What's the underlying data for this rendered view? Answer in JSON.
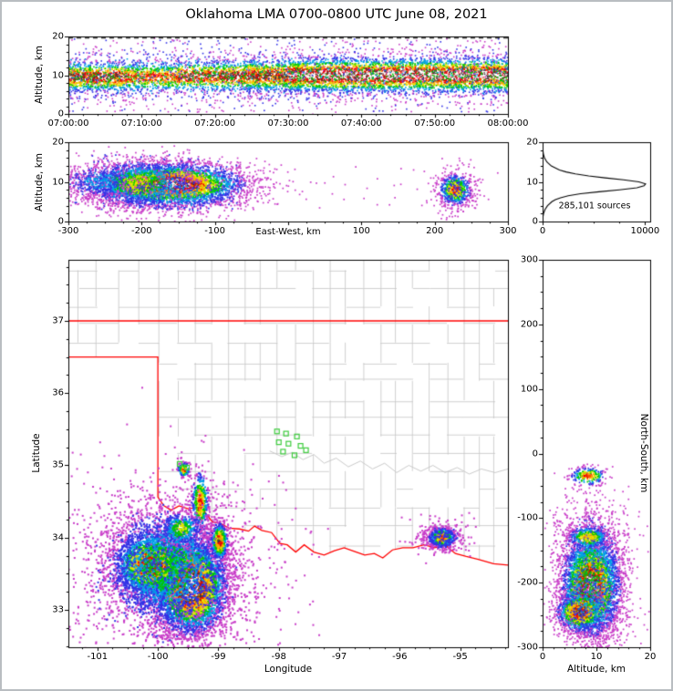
{
  "title": "Oklahoma LMA 0700-0800 UTC June 08, 2021",
  "colors": {
    "density_scale": [
      "#c83cc8",
      "#3232e6",
      "#00a0e6",
      "#00c800",
      "#e6e600",
      "#ffa000",
      "#f00000",
      "#3c3c3c",
      "#ffffff"
    ],
    "state_border": "#ff0000",
    "county_line": "#c4c4c4",
    "river_line": "#c4c4c4",
    "station_marker": "#3ecc3e",
    "histogram_line": "#000000",
    "axis": "#000000",
    "figure_border": "#b9bdc1"
  },
  "chart_data": [
    {
      "id": "time_height",
      "type": "scatter-density",
      "xlabel": "",
      "ylabel": "Altitude, km",
      "xlim": [
        0,
        3600
      ],
      "ylim": [
        0,
        20
      ],
      "x_ticks": [
        {
          "v": 0,
          "label": "07:00:00"
        },
        {
          "v": 600,
          "label": "07:10:00"
        },
        {
          "v": 1200,
          "label": "07:20:00"
        },
        {
          "v": 1800,
          "label": "07:30:00"
        },
        {
          "v": 2400,
          "label": "07:40:00"
        },
        {
          "v": 3000,
          "label": "07:50:00"
        },
        {
          "v": 3600,
          "label": "08:00:00"
        }
      ],
      "y_ticks": [
        {
          "v": 0,
          "label": "0"
        },
        {
          "v": 10,
          "label": "10"
        },
        {
          "v": 20,
          "label": "20"
        }
      ],
      "x_minor_step": 120,
      "y_minor_step": 2,
      "dashed_line_alt": 19.6,
      "bands": [
        {
          "x0": 0,
          "x1": 480,
          "cy": 9.5,
          "sy": 2.0,
          "n": 900,
          "t0": 0,
          "t1": 7
        },
        {
          "x0": 480,
          "x1": 900,
          "cy": 9.5,
          "sy": 2.0,
          "n": 650,
          "t0": 0,
          "t1": 6
        },
        {
          "x0": 900,
          "x1": 1440,
          "cy": 9.8,
          "sy": 2.0,
          "n": 800,
          "t0": 0,
          "t1": 7
        },
        {
          "x0": 1440,
          "x1": 1800,
          "cy": 9.9,
          "sy": 2.1,
          "n": 850,
          "t0": 0,
          "t1": 7
        },
        {
          "x0": 1800,
          "x1": 2100,
          "cy": 10.0,
          "sy": 2.2,
          "n": 950,
          "t0": 0,
          "t1": 8
        },
        {
          "x0": 2100,
          "x1": 3600,
          "cy": 10.0,
          "sy": 2.3,
          "n": 4000,
          "t0": 0,
          "t1": 8
        },
        {
          "x0": 0,
          "x1": 3600,
          "cy": 9.8,
          "sy": 3.8,
          "n": 1300,
          "t0": 0,
          "t1": 3
        }
      ],
      "noise": [
        {
          "x0": 0,
          "x1": 3600,
          "y0": 0.5,
          "y1": 19.4,
          "n": 600,
          "t0": 0,
          "t1": 1
        }
      ]
    },
    {
      "id": "ew_height",
      "type": "scatter-density",
      "xlabel": "East-West, km",
      "ylabel": "Altitude, km",
      "xlim": [
        -300,
        300
      ],
      "ylim": [
        0,
        20
      ],
      "x_ticks": [
        {
          "v": -300,
          "label": "-300"
        },
        {
          "v": -200,
          "label": "-200"
        },
        {
          "v": -100,
          "label": "-100"
        },
        {
          "v": 0,
          "label": ""
        },
        {
          "v": 100,
          "label": "100"
        },
        {
          "v": 200,
          "label": "200"
        },
        {
          "v": 300,
          "label": "300"
        }
      ],
      "y_ticks": [
        {
          "v": 0,
          "label": "0"
        },
        {
          "v": 10,
          "label": "10"
        },
        {
          "v": 20,
          "label": "20"
        }
      ],
      "x_minor_step": 25,
      "y_minor_step": 2,
      "clusters": [
        {
          "cx": -160,
          "cy": 9.3,
          "sx": 50,
          "sy": 2.6,
          "n": 4800,
          "t0": 0,
          "t1": 8
        },
        {
          "cx": -205,
          "cy": 9.6,
          "sx": 38,
          "sy": 3.1,
          "n": 1300,
          "t0": 0,
          "t1": 4
        },
        {
          "cx": -258,
          "cy": 10.0,
          "sx": 26,
          "sy": 2.4,
          "n": 450,
          "t0": 0,
          "t1": 2
        },
        {
          "cx": -150,
          "cy": 6.5,
          "sx": 55,
          "sy": 2.8,
          "n": 500,
          "t0": 0,
          "t1": 2
        },
        {
          "cx": 228,
          "cy": 8.0,
          "sx": 11,
          "sy": 2.0,
          "n": 620,
          "t0": 0,
          "t1": 6
        },
        {
          "cx": 228,
          "cy": 8.0,
          "sx": 18,
          "sy": 3.4,
          "n": 180,
          "t0": 0,
          "t1": 1
        }
      ],
      "noise": [
        {
          "x0": -300,
          "x1": -60,
          "y0": 3,
          "y1": 17,
          "n": 220,
          "t0": 0,
          "t1": 1
        },
        {
          "x0": -60,
          "x1": 300,
          "y0": 4,
          "y1": 14,
          "n": 45,
          "t0": 0,
          "t1": 0
        }
      ]
    },
    {
      "id": "alt_histogram",
      "type": "line",
      "annotation": "285,101 sources",
      "xlabel": "",
      "ylabel": "",
      "xlim": [
        0,
        10500
      ],
      "ylim": [
        0,
        20
      ],
      "x_ticks": [
        {
          "v": 0,
          "label": "0"
        },
        {
          "v": 10000,
          "label": "10000"
        }
      ],
      "y_ticks": [
        {
          "v": 0,
          "label": "0"
        },
        {
          "v": 10,
          "label": "10"
        },
        {
          "v": 20,
          "label": "20"
        }
      ],
      "x_minor_step": 2500,
      "y_minor_step": 2,
      "profile": [
        [
          0,
          0
        ],
        [
          1,
          25
        ],
        [
          2,
          90
        ],
        [
          3,
          230
        ],
        [
          4,
          480
        ],
        [
          5,
          900
        ],
        [
          5.5,
          1250
        ],
        [
          6,
          1750
        ],
        [
          6.5,
          2500
        ],
        [
          7,
          3700
        ],
        [
          7.5,
          5500
        ],
        [
          8,
          7500
        ],
        [
          8.5,
          9200
        ],
        [
          9,
          9900
        ],
        [
          9.5,
          10050
        ],
        [
          10,
          9400
        ],
        [
          10.5,
          7900
        ],
        [
          11,
          6100
        ],
        [
          11.5,
          4500
        ],
        [
          12,
          3200
        ],
        [
          12.5,
          2300
        ],
        [
          13,
          1650
        ],
        [
          14,
          850
        ],
        [
          15,
          420
        ],
        [
          16,
          190
        ],
        [
          17,
          80
        ],
        [
          18,
          28
        ],
        [
          19,
          8
        ],
        [
          20,
          0
        ]
      ]
    },
    {
      "id": "map",
      "type": "scatter-density",
      "xlabel": "Longitude",
      "ylabel": "Latitude",
      "xlim": [
        -101.48,
        -94.21
      ],
      "ylim": [
        32.483,
        37.845
      ],
      "x_ticks": [
        {
          "v": -101,
          "label": "-101"
        },
        {
          "v": -100,
          "label": "-100"
        },
        {
          "v": -99,
          "label": "-99"
        },
        {
          "v": -98,
          "label": "-98"
        },
        {
          "v": -97,
          "label": "-97"
        },
        {
          "v": -96,
          "label": "-96"
        },
        {
          "v": -95,
          "label": "-95"
        }
      ],
      "y_ticks": [
        {
          "v": 33,
          "label": "33"
        },
        {
          "v": 34,
          "label": "34"
        },
        {
          "v": 35,
          "label": "35"
        },
        {
          "v": 36,
          "label": "36"
        },
        {
          "v": 37,
          "label": "37"
        }
      ],
      "x_minor_step": 0.25,
      "y_minor_step": 0.25,
      "borders": {
        "kansas": [
          [
            -101.48,
            37
          ],
          [
            -94.21,
            37
          ]
        ],
        "panhandle": [
          [
            -101.48,
            36.5
          ],
          [
            -100.0,
            36.5
          ]
        ],
        "red_river": [
          [
            -100.0,
            34.56
          ],
          [
            -99.9,
            34.44
          ],
          [
            -99.78,
            34.38
          ],
          [
            -99.65,
            34.44
          ],
          [
            -99.5,
            34.4
          ],
          [
            -99.35,
            34.42
          ],
          [
            -99.22,
            34.35
          ],
          [
            -99.1,
            34.22
          ],
          [
            -98.97,
            34.2
          ],
          [
            -98.82,
            34.13
          ],
          [
            -98.65,
            34.12
          ],
          [
            -98.5,
            34.09
          ],
          [
            -98.4,
            34.16
          ],
          [
            -98.28,
            34.1
          ],
          [
            -98.12,
            34.07
          ],
          [
            -97.98,
            33.92
          ],
          [
            -97.86,
            33.9
          ],
          [
            -97.72,
            33.8
          ],
          [
            -97.58,
            33.9
          ],
          [
            -97.42,
            33.8
          ],
          [
            -97.25,
            33.76
          ],
          [
            -97.08,
            33.82
          ],
          [
            -96.92,
            33.86
          ],
          [
            -96.75,
            33.81
          ],
          [
            -96.58,
            33.76
          ],
          [
            -96.42,
            33.78
          ],
          [
            -96.28,
            33.72
          ],
          [
            -96.12,
            33.83
          ],
          [
            -95.95,
            33.86
          ],
          [
            -95.78,
            33.86
          ],
          [
            -95.6,
            33.9
          ],
          [
            -95.42,
            33.86
          ],
          [
            -95.25,
            33.9
          ],
          [
            -95.08,
            33.78
          ],
          [
            -94.9,
            33.74
          ],
          [
            -94.7,
            33.7
          ],
          [
            -94.45,
            33.64
          ],
          [
            -94.21,
            33.62
          ]
        ]
      },
      "counties": {
        "lons": [
          -101.3,
          -101.0,
          -100.65,
          -100.32,
          -99.98,
          -99.68,
          -99.4,
          -99.12,
          -98.85,
          -98.58,
          -98.3,
          -98.02,
          -97.72,
          -97.45,
          -97.17,
          -96.88,
          -96.6,
          -96.32,
          -96.05,
          -95.78,
          -95.5,
          -95.22,
          -94.95,
          -94.68,
          -94.42
        ],
        "lats": [
          33.9,
          34.15,
          34.42,
          34.68,
          34.92,
          35.15,
          35.4,
          35.65,
          35.9,
          36.17,
          36.42,
          36.7,
          36.95,
          37.2,
          37.45,
          37.7
        ],
        "keep": 0.72,
        "jitter": 0.05
      },
      "rivers": [
        [
          [
            -98.15,
            35.2
          ],
          [
            -97.95,
            35.12
          ],
          [
            -97.78,
            35.18
          ],
          [
            -97.6,
            35.08
          ],
          [
            -97.42,
            35.15
          ],
          [
            -97.25,
            35.03
          ],
          [
            -97.05,
            35.1
          ],
          [
            -96.85,
            34.98
          ],
          [
            -96.65,
            35.06
          ],
          [
            -96.45,
            34.95
          ],
          [
            -96.25,
            35.03
          ],
          [
            -96.05,
            34.9
          ],
          [
            -95.85,
            35.0
          ],
          [
            -95.65,
            34.92
          ],
          [
            -95.45,
            35.0
          ],
          [
            -95.25,
            34.9
          ],
          [
            -95.05,
            34.97
          ],
          [
            -94.85,
            34.88
          ],
          [
            -94.65,
            34.95
          ],
          [
            -94.42,
            34.9
          ],
          [
            -94.21,
            34.95
          ]
        ]
      ],
      "stations": [
        [
          -98.03,
          35.47
        ],
        [
          -97.88,
          35.44
        ],
        [
          -97.7,
          35.4
        ],
        [
          -98.0,
          35.32
        ],
        [
          -97.84,
          35.3
        ],
        [
          -97.64,
          35.27
        ],
        [
          -97.93,
          35.19
        ],
        [
          -97.74,
          35.14
        ],
        [
          -97.55,
          35.21
        ],
        [
          -99.64,
          35.02
        ],
        [
          -99.52,
          34.97
        ]
      ],
      "clusters": [
        {
          "cx": -99.45,
          "cy": 33.32,
          "sx": 0.3,
          "sy": 0.33,
          "n": 5200,
          "t0": 0,
          "t1": 8
        },
        {
          "cx": -100.12,
          "cy": 33.62,
          "sx": 0.3,
          "sy": 0.22,
          "n": 2300,
          "t0": 0,
          "t1": 7
        },
        {
          "cx": -99.85,
          "cy": 33.58,
          "sx": 0.58,
          "sy": 0.46,
          "n": 2500,
          "t0": 0,
          "t1": 3
        },
        {
          "cx": -99.82,
          "cy": 33.6,
          "sx": 0.85,
          "sy": 0.62,
          "n": 800,
          "t0": 0,
          "t1": 1
        },
        {
          "cx": -99.3,
          "cy": 34.5,
          "sx": 0.07,
          "sy": 0.2,
          "n": 400,
          "t0": 0,
          "t1": 6
        },
        {
          "cx": -98.98,
          "cy": 33.95,
          "sx": 0.07,
          "sy": 0.13,
          "n": 520,
          "t0": 0,
          "t1": 7
        },
        {
          "cx": -99.62,
          "cy": 34.12,
          "sx": 0.18,
          "sy": 0.12,
          "n": 350,
          "t0": 0,
          "t1": 4
        },
        {
          "cx": -99.57,
          "cy": 34.94,
          "sx": 0.05,
          "sy": 0.05,
          "n": 160,
          "t0": 0,
          "t1": 6
        },
        {
          "cx": -95.3,
          "cy": 34.0,
          "sx": 0.11,
          "sy": 0.07,
          "n": 650,
          "t0": 0,
          "t1": 6
        },
        {
          "cx": -95.3,
          "cy": 34.0,
          "sx": 0.24,
          "sy": 0.13,
          "n": 200,
          "t0": 0,
          "t1": 1
        },
        {
          "cx": -99.9,
          "cy": 33.45,
          "sx": 1.05,
          "sy": 0.85,
          "n": 320,
          "t0": 0,
          "t1": 1
        }
      ]
    },
    {
      "id": "ns_height",
      "type": "scatter-density",
      "xlabel": "Altitude, km",
      "ylabel": "North-South, km",
      "xlim": [
        0,
        20
      ],
      "ylim": [
        -300,
        300
      ],
      "x_ticks": [
        {
          "v": 0,
          "label": "0"
        },
        {
          "v": 10,
          "label": "10"
        },
        {
          "v": 20,
          "label": "20"
        }
      ],
      "y_ticks": [
        {
          "v": 300,
          "label": "300"
        },
        {
          "v": 200,
          "label": "200"
        },
        {
          "v": 100,
          "label": "100"
        },
        {
          "v": 0,
          "label": "0"
        },
        {
          "v": -100,
          "label": "-100"
        },
        {
          "v": -200,
          "label": "-200"
        },
        {
          "v": -300,
          "label": "-300"
        }
      ],
      "x_minor_step": 2,
      "y_minor_step": 25,
      "clusters": [
        {
          "cx": 9.0,
          "cy": -205,
          "sx": 2.7,
          "sy": 38,
          "n": 4800,
          "t0": 0,
          "t1": 8
        },
        {
          "cx": 7.0,
          "cy": -245,
          "sx": 2.2,
          "sy": 16,
          "n": 1100,
          "t0": 0,
          "t1": 7
        },
        {
          "cx": 9.0,
          "cy": -190,
          "sx": 3.4,
          "sy": 58,
          "n": 1100,
          "t0": 0,
          "t1": 3
        },
        {
          "cx": 8.5,
          "cy": -130,
          "sx": 2.0,
          "sy": 9,
          "n": 500,
          "t0": 0,
          "t1": 5
        },
        {
          "cx": 8.5,
          "cy": -35,
          "sx": 1.7,
          "sy": 7,
          "n": 260,
          "t0": 0,
          "t1": 6
        },
        {
          "cx": 9.0,
          "cy": -200,
          "sx": 4.2,
          "sy": 72,
          "n": 380,
          "t0": 0,
          "t1": 1
        }
      ],
      "noise": [
        {
          "x0": 2,
          "x1": 16,
          "y0": -290,
          "y1": -70,
          "n": 140,
          "t0": 0,
          "t1": 0
        }
      ]
    }
  ]
}
